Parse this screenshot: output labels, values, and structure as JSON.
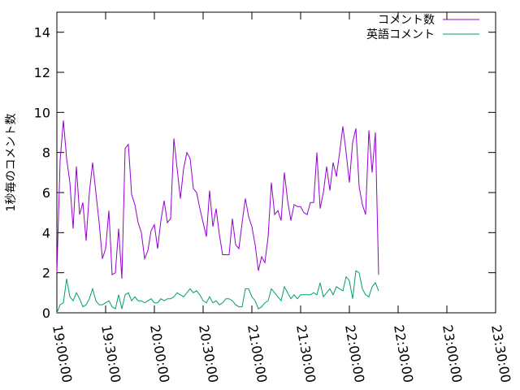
{
  "chart_data": {
    "type": "line",
    "title": "",
    "xlabel": "",
    "ylabel": "1秒毎のコメント数",
    "xlim": [
      "19:00:00",
      "23:30:00"
    ],
    "ylim": [
      0,
      15
    ],
    "x_ticks": [
      "19:00:00",
      "19:30:00",
      "20:00:00",
      "20:30:00",
      "21:00:00",
      "21:30:00",
      "22:00:00",
      "22:30:00",
      "23:00:00",
      "23:30:00"
    ],
    "y_ticks": [
      0,
      2,
      4,
      6,
      8,
      10,
      12,
      14
    ],
    "grid": false,
    "legend_position": "top-right",
    "sample_interval": "00:02:00",
    "x_start": "19:00:00",
    "series": [
      {
        "name": "コメント数",
        "color": "#9400d3",
        "values": [
          2.0,
          7.6,
          9.6,
          7.7,
          6.5,
          4.2,
          7.3,
          4.9,
          5.5,
          3.6,
          6.0,
          7.5,
          6.0,
          4.5,
          2.7,
          3.2,
          5.1,
          1.9,
          2.0,
          4.2,
          1.7,
          8.2,
          8.4,
          5.9,
          5.4,
          4.5,
          4.0,
          2.7,
          3.1,
          4.1,
          4.4,
          3.2,
          4.6,
          5.6,
          4.5,
          4.7,
          8.7,
          7.2,
          5.7,
          7.2,
          8.0,
          7.7,
          6.2,
          6.0,
          5.2,
          4.5,
          3.8,
          6.1,
          4.3,
          5.2,
          3.9,
          2.9,
          2.9,
          2.9,
          4.7,
          3.4,
          3.2,
          4.5,
          5.7,
          4.8,
          4.3,
          3.4,
          2.1,
          2.8,
          2.5,
          3.8,
          6.5,
          4.9,
          5.1,
          4.6,
          7.0,
          5.6,
          4.6,
          5.4,
          5.3,
          5.3,
          5.0,
          4.9,
          5.5,
          5.5,
          8.0,
          5.2,
          6.0,
          7.3,
          6.1,
          7.5,
          6.8,
          8.0,
          9.3,
          8.0,
          6.5,
          8.5,
          9.2,
          6.3,
          5.4,
          4.9,
          9.1,
          7.0,
          9.0,
          1.9
        ]
      },
      {
        "name": "英語コメント",
        "color": "#009e73",
        "values": [
          0.0,
          0.4,
          0.5,
          1.7,
          0.8,
          0.6,
          1.0,
          0.7,
          0.3,
          0.4,
          0.7,
          1.2,
          0.6,
          0.4,
          0.4,
          0.5,
          0.6,
          0.3,
          0.2,
          0.9,
          0.2,
          0.9,
          1.0,
          0.6,
          0.8,
          0.6,
          0.6,
          0.5,
          0.6,
          0.7,
          0.5,
          0.5,
          0.7,
          0.6,
          0.7,
          0.7,
          0.8,
          1.0,
          0.9,
          0.8,
          1.0,
          1.2,
          1.0,
          1.1,
          0.9,
          0.6,
          0.5,
          0.8,
          0.5,
          0.6,
          0.4,
          0.5,
          0.7,
          0.7,
          0.6,
          0.4,
          0.3,
          0.3,
          1.2,
          1.2,
          0.8,
          0.6,
          0.2,
          0.3,
          0.5,
          0.6,
          1.2,
          1.0,
          0.8,
          0.6,
          1.3,
          1.0,
          0.7,
          0.9,
          0.7,
          0.9,
          0.9,
          0.9,
          0.9,
          1.0,
          0.9,
          1.5,
          0.8,
          1.0,
          1.2,
          0.9,
          1.3,
          1.2,
          1.1,
          1.8,
          1.6,
          0.7,
          2.1,
          2.0,
          1.2,
          0.9,
          0.8,
          1.3,
          1.5,
          1.1
        ]
      }
    ]
  }
}
